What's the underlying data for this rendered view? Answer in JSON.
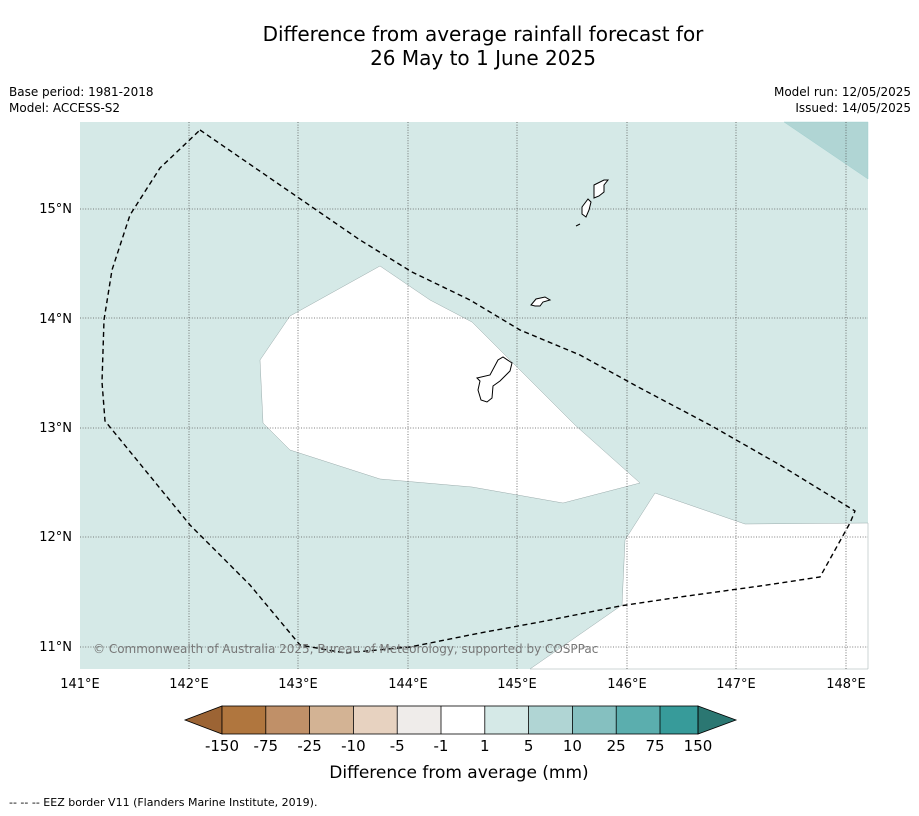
{
  "title_line1": "Difference from average rainfall forecast for",
  "title_line2": "26 May to 1 June 2025",
  "base_period": "Base period: 1981-2018",
  "model": "Model: ACCESS-S2",
  "model_run": "Model run: 12/05/2025",
  "issued": "Issued: 14/05/2025",
  "copyright": "© Commonwealth of Australia 2025, Bureau of Meteorology, supported by COSPPac",
  "footer": "-- -- -- EEZ border V11 (Flanders Marine Institute, 2019).",
  "map": {
    "lon_labels": [
      "141°E",
      "142°E",
      "143°E",
      "144°E",
      "145°E",
      "146°E",
      "147°E",
      "148°E"
    ],
    "lat_labels": [
      "15°N",
      "14°N",
      "13°N",
      "12°N",
      "11°N"
    ],
    "colors": {
      "ocean_1_5": "#d5e9e7",
      "ocean_5_10": "#b0d5d4",
      "neutral": "#ffffff"
    }
  },
  "colorbar": {
    "title": "Difference from average (mm)",
    "labels": [
      "-150",
      "-75",
      "-25",
      "-10",
      "-5",
      "-1",
      "1",
      "5",
      "10",
      "25",
      "75",
      "150"
    ],
    "colors": [
      "#9c6434",
      "#b0763e",
      "#c09068",
      "#d3b394",
      "#e7d2c0",
      "#efecea",
      "#ffffff",
      "#d5e9e7",
      "#b0d5d4",
      "#85c0c0",
      "#5baeae",
      "#379b9a",
      "#2b7772"
    ]
  }
}
